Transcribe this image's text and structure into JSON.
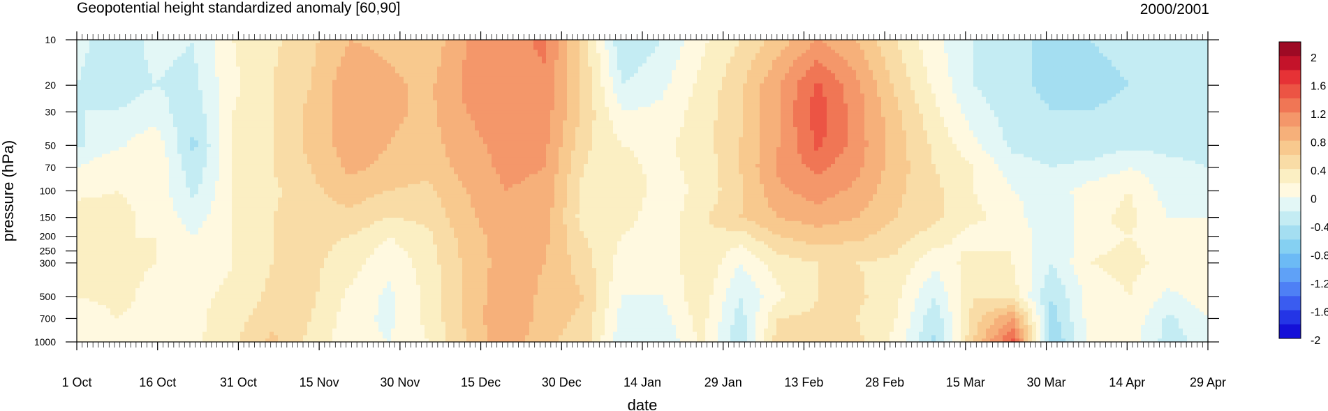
{
  "chart_data": {
    "type": "heatmap",
    "title": "Geopotential height standardized anomaly [60,90]",
    "subtitle": "2000/2001",
    "xlabel": "date",
    "ylabel": "pressure (hPa)",
    "y_scale": "log",
    "y_reversed": true,
    "ylim": [
      10,
      1000
    ],
    "y_ticks": [
      10,
      20,
      30,
      50,
      70,
      100,
      150,
      200,
      250,
      300,
      500,
      700,
      1000
    ],
    "x_range": [
      "2000-10-01",
      "2001-04-29"
    ],
    "x_tick_labels": [
      "1 Oct",
      "16 Oct",
      "31 Oct",
      "15 Nov",
      "30 Nov",
      "15 Dec",
      "30 Dec",
      "14 Jan",
      "29 Jan",
      "13 Feb",
      "28 Feb",
      "15 Mar",
      "30 Mar",
      "14 Apr",
      "29 Apr"
    ],
    "colorbar": {
      "levels": [
        -2,
        -1.8,
        -1.6,
        -1.4,
        -1.2,
        -1,
        -0.8,
        -0.6,
        -0.4,
        -0.2,
        0,
        0.2,
        0.4,
        0.6,
        0.8,
        1,
        1.2,
        1.4,
        1.6,
        1.8,
        2
      ],
      "labels": [
        "2",
        "1.6",
        "1.2",
        "0.8",
        "0.4",
        "0",
        "-0.4",
        "-0.8",
        "-1.2",
        "-1.6",
        "-2"
      ],
      "colors": [
        "#1410d8",
        "#2435e6",
        "#3a5cf0",
        "#4e80f5",
        "#5fa1f7",
        "#6cbaf5",
        "#85d0f2",
        "#a4def1",
        "#c4ecf3",
        "#e3f7f6",
        "#fff9e0",
        "#fbefc3",
        "#f9dca6",
        "#f8c98e",
        "#f6b07a",
        "#f4976a",
        "#f07655",
        "#ec5444",
        "#e63236",
        "#c4132a",
        "#9e0a24"
      ]
    },
    "series": [
      {
        "pressure": 10,
        "values": [
          -0.25,
          -0.4,
          -0.25,
          -0.3,
          0.1,
          0.25,
          0.45,
          0.7,
          0.65,
          0.55,
          0.9,
          1.0,
          1.15,
          0.4,
          -0.5,
          -0.3,
          0.05,
          0.3,
          0.6,
          0.9,
          0.7,
          0.3,
          -0.05,
          -0.3,
          -0.45,
          -0.55,
          -0.5,
          -0.45,
          -0.4,
          -0.4
        ]
      },
      {
        "pressure": 20,
        "values": [
          -0.3,
          -0.4,
          -0.3,
          -0.35,
          0.05,
          0.3,
          0.5,
          0.85,
          0.75,
          0.65,
          0.95,
          1.05,
          1.05,
          0.45,
          -0.3,
          -0.15,
          0.15,
          0.45,
          0.9,
          1.35,
          0.95,
          0.45,
          0.05,
          -0.3,
          -0.45,
          -0.55,
          -0.55,
          -0.5,
          -0.45,
          -0.45
        ]
      },
      {
        "pressure": 30,
        "values": [
          -0.3,
          -0.3,
          -0.2,
          -0.45,
          0.1,
          0.3,
          0.55,
          0.85,
          0.75,
          0.65,
          0.9,
          1.0,
          1.0,
          0.45,
          -0.1,
          -0.05,
          0.2,
          0.45,
          0.9,
          1.4,
          1.0,
          0.55,
          0.15,
          -0.2,
          -0.4,
          -0.5,
          -0.5,
          -0.45,
          -0.45,
          -0.4
        ]
      },
      {
        "pressure": 50,
        "values": [
          -0.35,
          -0.15,
          0.05,
          -0.55,
          0.1,
          0.3,
          0.55,
          0.8,
          0.7,
          0.6,
          0.85,
          0.95,
          0.95,
          0.35,
          0.1,
          0.05,
          0.2,
          0.5,
          0.9,
          1.35,
          1.0,
          0.6,
          0.25,
          -0.05,
          -0.35,
          -0.4,
          -0.4,
          -0.35,
          -0.35,
          -0.35
        ]
      },
      {
        "pressure": 70,
        "values": [
          -0.1,
          0.1,
          0.1,
          -0.45,
          0.1,
          0.3,
          0.5,
          0.75,
          0.65,
          0.55,
          0.8,
          0.95,
          0.9,
          0.3,
          0.15,
          0.05,
          0.15,
          0.5,
          0.95,
          1.15,
          0.95,
          0.6,
          0.3,
          0.1,
          -0.2,
          -0.3,
          -0.25,
          -0.1,
          -0.25,
          -0.3
        ]
      },
      {
        "pressure": 100,
        "values": [
          0.05,
          0.1,
          0.05,
          -0.35,
          0.1,
          0.25,
          0.45,
          0.6,
          0.5,
          0.45,
          0.7,
          0.9,
          0.85,
          0.2,
          0.25,
          0.0,
          0.15,
          0.45,
          0.85,
          1.0,
          0.85,
          0.55,
          0.35,
          0.1,
          -0.1,
          -0.2,
          0.0,
          0.1,
          -0.2,
          -0.2
        ]
      },
      {
        "pressure": 150,
        "values": [
          0.2,
          0.15,
          0.05,
          -0.2,
          0.1,
          0.3,
          0.4,
          0.45,
          0.3,
          0.35,
          0.65,
          0.85,
          0.8,
          0.2,
          0.2,
          -0.05,
          0.25,
          0.5,
          0.7,
          0.8,
          0.7,
          0.5,
          0.35,
          0.15,
          0.0,
          -0.3,
          0.05,
          0.15,
          -0.1,
          -0.1
        ]
      },
      {
        "pressure": 200,
        "values": [
          0.2,
          0.1,
          0.1,
          -0.1,
          0.1,
          0.3,
          0.35,
          0.3,
          0.1,
          0.25,
          0.6,
          0.8,
          0.75,
          0.3,
          0.1,
          -0.05,
          0.3,
          0.2,
          0.5,
          0.6,
          0.55,
          0.4,
          0.2,
          0.0,
          0.1,
          -0.3,
          0.05,
          0.1,
          0.0,
          -0.05
        ]
      },
      {
        "pressure": 300,
        "values": [
          0.2,
          0.15,
          0.1,
          -0.05,
          0.1,
          0.3,
          0.35,
          0.2,
          -0.05,
          0.2,
          0.55,
          0.8,
          0.7,
          0.4,
          0.0,
          -0.1,
          0.3,
          -0.1,
          0.2,
          0.3,
          0.3,
          0.25,
          -0.05,
          0.2,
          0.1,
          -0.3,
          0.1,
          0.15,
          0.05,
          0.1
        ]
      },
      {
        "pressure": 500,
        "values": [
          0.1,
          0.15,
          0.05,
          0.05,
          0.15,
          0.35,
          0.35,
          0.05,
          -0.15,
          0.15,
          0.55,
          0.85,
          0.65,
          0.5,
          -0.1,
          -0.1,
          0.25,
          -0.3,
          0.05,
          0.3,
          0.35,
          0.15,
          -0.3,
          0.3,
          0.2,
          -0.5,
          0.0,
          0.1,
          -0.15,
          0.0
        ]
      },
      {
        "pressure": 700,
        "values": [
          -0.05,
          0.1,
          0.05,
          0.05,
          0.2,
          0.45,
          0.3,
          0.0,
          -0.15,
          0.15,
          0.55,
          0.9,
          0.6,
          0.45,
          -0.2,
          -0.2,
          0.2,
          -0.4,
          0.3,
          0.35,
          0.3,
          0.1,
          -0.45,
          0.4,
          0.9,
          -0.6,
          0.0,
          0.05,
          -0.35,
          -0.1
        ]
      },
      {
        "pressure": 1000,
        "values": [
          -0.1,
          0.05,
          -0.05,
          0.05,
          0.25,
          0.55,
          0.25,
          -0.05,
          -0.1,
          0.1,
          0.5,
          0.85,
          0.55,
          0.4,
          -0.25,
          -0.3,
          0.15,
          -0.45,
          0.45,
          0.5,
          0.35,
          0.05,
          -0.55,
          0.5,
          1.4,
          -0.7,
          -0.05,
          0.0,
          -0.4,
          -0.2
        ]
      }
    ]
  }
}
